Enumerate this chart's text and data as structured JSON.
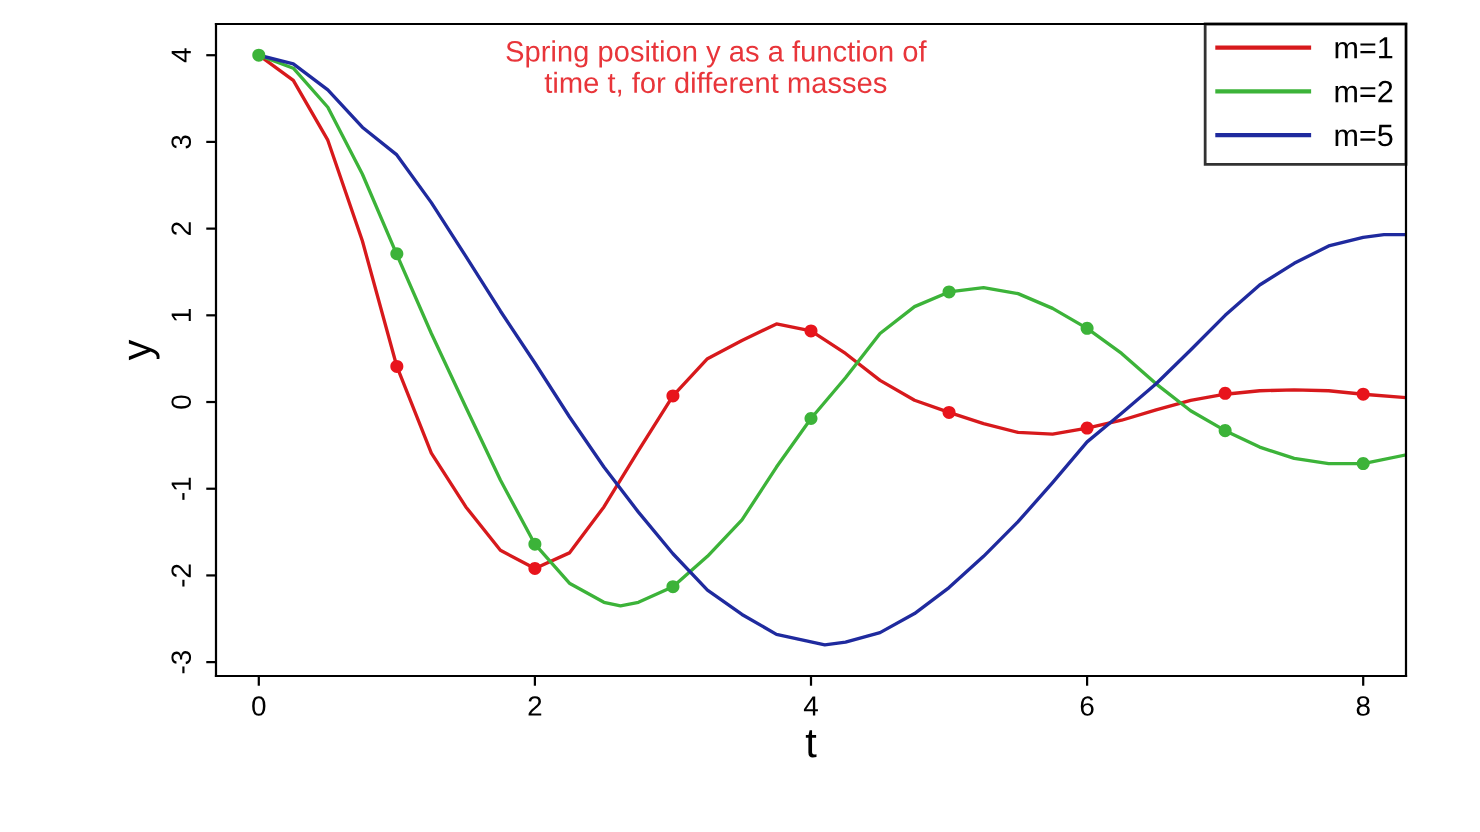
{
  "chart_data": {
    "type": "line",
    "title": "Spring position y as a function of\ntime t, for different masses",
    "xlabel": "t",
    "ylabel": "y",
    "xlim": [
      -0.31,
      8.31
    ],
    "ylim": [
      -3.16,
      4.36
    ],
    "xticks": [
      0,
      2,
      4,
      6,
      8
    ],
    "yticks": [
      -3,
      -2,
      -1,
      0,
      1,
      2,
      3,
      4
    ],
    "grid": false,
    "legend": "top right",
    "marker": "none",
    "series": [
      {
        "name": "m=1",
        "color": "#d7191c",
        "x": [
          0,
          0.25,
          0.5,
          0.75,
          1,
          1.25,
          1.5,
          1.75,
          2,
          2.25,
          2.5,
          2.75,
          3,
          3.25,
          3.5,
          3.75,
          4,
          4.25,
          4.5,
          4.75,
          5,
          5.25,
          5.5,
          5.75,
          6,
          6.25,
          6.5,
          6.75,
          7,
          7.25,
          7.5,
          7.75,
          8,
          8.31
        ],
        "values": [
          4,
          3.71,
          3.02,
          1.86,
          0.41,
          -0.59,
          -1.21,
          -1.71,
          -1.92,
          -1.74,
          -1.21,
          -0.56,
          0.07,
          0.5,
          0.71,
          0.9,
          0.82,
          0.56,
          0.25,
          0.02,
          -0.12,
          -0.25,
          -0.35,
          -0.37,
          -0.3,
          -0.21,
          -0.09,
          0.02,
          0.09,
          0.13,
          0.14,
          0.13,
          0.09,
          0.05
        ]
      },
      {
        "name": "m=2",
        "color": "#3cb339",
        "x": [
          0,
          0.25,
          0.5,
          0.75,
          1,
          1.25,
          1.5,
          1.75,
          2,
          2.25,
          2.5,
          2.62,
          2.75,
          3,
          3.25,
          3.5,
          3.75,
          4,
          4.25,
          4.5,
          4.75,
          5,
          5.25,
          5.5,
          5.75,
          6,
          6.25,
          6.5,
          6.75,
          7,
          7.25,
          7.5,
          7.75,
          8,
          8.31
        ],
        "values": [
          4,
          3.85,
          3.4,
          2.63,
          1.7,
          0.79,
          -0.06,
          -0.9,
          -1.64,
          -2.09,
          -2.31,
          -2.35,
          -2.31,
          -2.13,
          -1.78,
          -1.36,
          -0.75,
          -0.19,
          0.28,
          0.79,
          1.1,
          1.27,
          1.32,
          1.25,
          1.08,
          0.85,
          0.56,
          0.21,
          -0.1,
          -0.33,
          -0.52,
          -0.65,
          -0.71,
          -0.71,
          -0.61
        ]
      },
      {
        "name": "m=5",
        "color": "#1f2a9e",
        "x": [
          0,
          0.25,
          0.5,
          0.75,
          1,
          1.25,
          1.5,
          1.75,
          2,
          2.25,
          2.5,
          2.75,
          3,
          3.25,
          3.5,
          3.75,
          4.1,
          4.25,
          4.5,
          4.75,
          5,
          5.25,
          5.5,
          5.75,
          6,
          6.25,
          6.5,
          6.75,
          7,
          7.25,
          7.5,
          7.75,
          8,
          8.15,
          8.31
        ],
        "values": [
          4,
          3.9,
          3.6,
          3.17,
          2.85,
          2.3,
          1.68,
          1.05,
          0.45,
          -0.17,
          -0.75,
          -1.27,
          -1.75,
          -2.17,
          -2.45,
          -2.68,
          -2.8,
          -2.77,
          -2.66,
          -2.44,
          -2.14,
          -1.78,
          -1.38,
          -0.93,
          -0.46,
          -0.13,
          0.21,
          0.6,
          1.0,
          1.35,
          1.6,
          1.8,
          1.9,
          1.93,
          1.93
        ]
      },
      {
        "color": "#e8141c",
        "type": "scatter",
        "marker": "circle",
        "x": [
          1,
          2,
          3,
          4,
          5,
          6,
          7,
          8
        ],
        "values": [
          0.41,
          -1.92,
          0.07,
          0.82,
          -0.12,
          -0.3,
          0.1,
          0.09
        ]
      },
      {
        "color": "#3cb339",
        "type": "scatter",
        "marker": "circle",
        "x": [
          0,
          1,
          2,
          3,
          4,
          5,
          6,
          7,
          8
        ],
        "values": [
          4,
          1.71,
          -1.64,
          -2.13,
          -0.19,
          1.27,
          0.85,
          -0.33,
          -0.71
        ]
      }
    ]
  }
}
